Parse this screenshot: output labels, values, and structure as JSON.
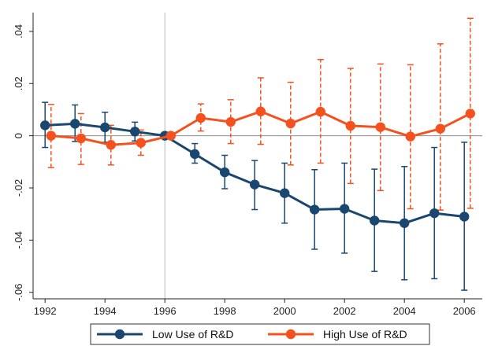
{
  "chart_data": {
    "type": "line",
    "title": "",
    "xlabel": "",
    "ylabel": "",
    "x": [
      1992,
      1993,
      1994,
      1995,
      1996,
      1997,
      1998,
      1999,
      2000,
      2001,
      2002,
      2003,
      2004,
      2005,
      2006
    ],
    "xlim": [
      1991.6,
      2006.6
    ],
    "ylim": [
      -0.0625,
      0.0472
    ],
    "x_ticks": [
      1992,
      1994,
      1996,
      1998,
      2000,
      2002,
      2004,
      2006
    ],
    "x_tick_labels": [
      "1992",
      "1994",
      "1996",
      "1998",
      "2000",
      "2002",
      "2004",
      "2006"
    ],
    "y_ticks": [
      -0.06,
      -0.04,
      -0.02,
      0,
      0.02,
      0.04
    ],
    "y_tick_labels": [
      "-.06",
      "-.04",
      "-.02",
      "0",
      ".02",
      ".04"
    ],
    "grid": false,
    "reference_lines": {
      "horizontal_y": 0,
      "vertical_x": 1996
    },
    "legend_position": "bottom",
    "series": [
      {
        "name": "Low Use of R&D",
        "color": "#1a476f",
        "offset": 0,
        "ci_style": "solid",
        "values": [
          0.004,
          0.0046,
          0.0032,
          0.0016,
          0.0,
          -0.007,
          -0.014,
          -0.0187,
          -0.022,
          -0.0283,
          -0.028,
          -0.0325,
          -0.0335,
          -0.0297,
          -0.031
        ],
        "ci_low": [
          -0.0045,
          -0.0022,
          -0.0025,
          -0.002,
          0.0,
          -0.0105,
          -0.0203,
          -0.0283,
          -0.0335,
          -0.0435,
          -0.045,
          -0.052,
          -0.0552,
          -0.0548,
          -0.0592
        ],
        "ci_high": [
          0.0128,
          0.0118,
          0.009,
          0.0052,
          0.0,
          -0.003,
          -0.0075,
          -0.0095,
          -0.0105,
          -0.013,
          -0.0105,
          -0.0128,
          -0.0118,
          -0.0045,
          -0.0025
        ]
      },
      {
        "name": "High Use of R&D",
        "color": "#f4511e",
        "offset": 0.2,
        "ci_style": "dashed",
        "values": [
          0.0,
          -0.001,
          -0.0035,
          -0.0027,
          0.0,
          0.0068,
          0.0053,
          0.0093,
          0.0047,
          0.0092,
          0.0038,
          0.0033,
          -0.0003,
          0.0027,
          0.0085
        ],
        "ci_low": [
          -0.0122,
          -0.011,
          -0.0112,
          -0.0075,
          0.0,
          0.0018,
          -0.003,
          -0.0033,
          -0.0112,
          -0.0105,
          -0.0183,
          -0.021,
          -0.028,
          -0.0285,
          -0.0278
        ],
        "ci_high": [
          0.012,
          0.0085,
          0.004,
          0.0022,
          0.0,
          0.0122,
          0.0138,
          0.0222,
          0.0205,
          0.0292,
          0.0258,
          0.0275,
          0.0272,
          0.0352,
          0.045
        ]
      }
    ]
  }
}
